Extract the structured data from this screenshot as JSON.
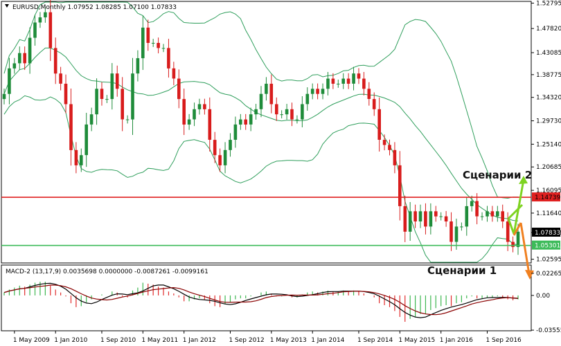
{
  "header": {
    "symbol": "EURUSD,Monthly",
    "ohlc": "1.07952 1.08285 1.07100 1.07833"
  },
  "indicator_header": "MACD-2 (13,17,9) 0.0035698 0.0000000 -0.0087261 -0.0099161",
  "annotations": {
    "scenario2": "Сценарии 2",
    "scenario1": "Сценарии 1"
  },
  "colors": {
    "bull": "#1f8c3a",
    "bear": "#d81c1c",
    "bollinger": "#2e9e5b",
    "resistance_line": "#e02020",
    "support_line": "#3dbb5a",
    "arrow_up": "#7ed321",
    "arrow_down": "#f08020",
    "macd_bull": "#3cb64f",
    "macd_bear": "#e02a2a"
  },
  "chart_data": [
    {
      "type": "candlestick",
      "title": "EURUSD,Monthly",
      "ylim": [
        1.02,
        1.53
      ],
      "y_ticks": [
        "1.52795",
        "1.47820",
        "1.43085",
        "1.38775",
        "1.34320",
        "1.29730",
        "1.25140",
        "1.20685",
        "1.16095",
        "1.11640",
        "1.07833",
        "1.02595"
      ],
      "price_labels": [
        {
          "label": "1.14739",
          "value": 1.14739,
          "role": "resistance"
        },
        {
          "label": "1.07833",
          "value": 1.07833,
          "role": "current"
        },
        {
          "label": "1.05301",
          "value": 1.05301,
          "role": "support"
        }
      ],
      "x_labels": [
        "1 May 2009",
        "1 Jan 2010",
        "1 Sep 2010",
        "1 May 2011",
        "1 Jan 2012",
        "1 Sep 2012",
        "1 May 2013",
        "1 Jan 2014",
        "1 Sep 2014",
        "1 May 2015",
        "1 Jan 2016",
        "1 Sep 2016"
      ],
      "closes": [
        1.35,
        1.4,
        1.41,
        1.43,
        1.41,
        1.46,
        1.49,
        1.5,
        1.51,
        1.44,
        1.39,
        1.37,
        1.33,
        1.24,
        1.21,
        1.23,
        1.29,
        1.31,
        1.36,
        1.34,
        1.34,
        1.39,
        1.36,
        1.3,
        1.3,
        1.39,
        1.42,
        1.48,
        1.45,
        1.45,
        1.44,
        1.44,
        1.4,
        1.38,
        1.34,
        1.29,
        1.3,
        1.32,
        1.33,
        1.32,
        1.26,
        1.23,
        1.21,
        1.24,
        1.26,
        1.29,
        1.3,
        1.29,
        1.31,
        1.32,
        1.35,
        1.37,
        1.33,
        1.31,
        1.31,
        1.32,
        1.3,
        1.3,
        1.33,
        1.35,
        1.36,
        1.35,
        1.36,
        1.38,
        1.37,
        1.37,
        1.38,
        1.37,
        1.39,
        1.38,
        1.36,
        1.34,
        1.32,
        1.26,
        1.25,
        1.24,
        1.21,
        1.13,
        1.08,
        1.12,
        1.1,
        1.12,
        1.09,
        1.12,
        1.11,
        1.11,
        1.1,
        1.06,
        1.09,
        1.09,
        1.13,
        1.14,
        1.11,
        1.11,
        1.12,
        1.11,
        1.12,
        1.1,
        1.06,
        1.05,
        1.08
      ],
      "series": [
        {
          "name": "Bollinger upper",
          "role": "band"
        },
        {
          "name": "Bollinger middle",
          "role": "band"
        },
        {
          "name": "Bollinger lower",
          "role": "band"
        }
      ]
    },
    {
      "type": "bar",
      "title": "MACD-2 (13,17,9)",
      "ylim": [
        -0.0355,
        0.0226
      ],
      "y_ticks": [
        "0.022650",
        "0.00",
        "-0.035556"
      ],
      "values": [
        0.003,
        0.006,
        0.008,
        0.01,
        0.009,
        0.011,
        0.013,
        0.014,
        0.014,
        0.01,
        0.006,
        0.003,
        -0.001,
        -0.008,
        -0.012,
        -0.011,
        -0.007,
        -0.004,
        0.0,
        0.001,
        0.0,
        0.004,
        0.003,
        -0.001,
        -0.002,
        0.005,
        0.008,
        0.013,
        0.012,
        0.011,
        0.009,
        0.008,
        0.004,
        0.002,
        -0.002,
        -0.006,
        -0.006,
        -0.004,
        -0.003,
        -0.004,
        -0.008,
        -0.011,
        -0.012,
        -0.009,
        -0.007,
        -0.004,
        -0.003,
        -0.003,
        -0.001,
        0.0,
        0.003,
        0.004,
        0.001,
        -0.001,
        -0.001,
        0.0,
        -0.002,
        -0.002,
        0.001,
        0.003,
        0.004,
        0.003,
        0.004,
        0.005,
        0.004,
        0.004,
        0.005,
        0.004,
        0.005,
        0.004,
        0.002,
        0.0,
        -0.002,
        -0.008,
        -0.01,
        -0.012,
        -0.016,
        -0.022,
        -0.027,
        -0.024,
        -0.022,
        -0.019,
        -0.019,
        -0.015,
        -0.013,
        -0.011,
        -0.01,
        -0.011,
        -0.008,
        -0.007,
        -0.003,
        -0.001,
        -0.003,
        -0.003,
        -0.002,
        -0.002,
        -0.001,
        -0.002,
        -0.004,
        -0.005,
        -0.004
      ]
    }
  ]
}
